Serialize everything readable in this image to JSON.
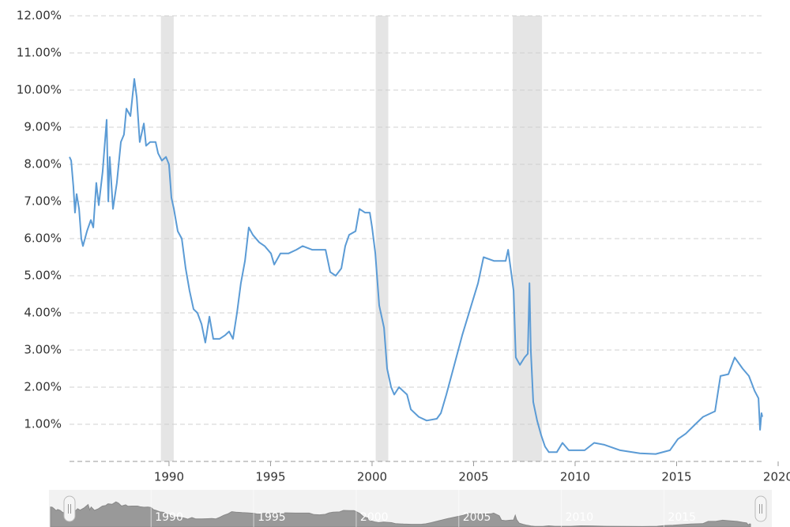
{
  "chart_data": {
    "type": "line",
    "x": [
      1985.1,
      1985.18,
      1985.29,
      1985.37,
      1985.45,
      1985.57,
      1985.68,
      1985.76,
      1985.96,
      1986.15,
      1986.27,
      1986.42,
      1986.54,
      1986.73,
      1986.93,
      1987.01,
      1987.08,
      1987.24,
      1987.43,
      1987.63,
      1987.78,
      1987.9,
      1988.1,
      1988.29,
      1988.41,
      1988.56,
      1988.76,
      1988.87,
      1989.07,
      1989.34,
      1989.46,
      1989.65,
      1989.85,
      1990.0,
      1990.12,
      1990.24,
      1990.43,
      1990.63,
      1990.82,
      1991.01,
      1991.21,
      1991.4,
      1991.6,
      1991.79,
      1991.99,
      1992.18,
      1992.49,
      1992.77,
      1992.96,
      1993.15,
      1993.35,
      1993.54,
      1993.74,
      1993.93,
      1994.13,
      1994.44,
      1994.71,
      1995.02,
      1995.18,
      1995.49,
      1995.88,
      1996.27,
      1996.58,
      1997.05,
      1997.43,
      1997.71,
      1997.94,
      1998.21,
      1998.49,
      1998.68,
      1998.87,
      1999.19,
      1999.38,
      1999.65,
      1999.89,
      2000.0,
      2000.16,
      2000.35,
      2000.59,
      2000.74,
      2000.94,
      2001.09,
      2001.33,
      2001.72,
      2001.91,
      2002.3,
      2002.69,
      2003.19,
      2003.39,
      2003.66,
      2004.05,
      2004.44,
      2004.83,
      2005.22,
      2005.49,
      2006.0,
      2006.58,
      2006.7,
      2006.85,
      2006.97,
      2007.08,
      2007.28,
      2007.51,
      2007.67,
      2007.75,
      2007.82,
      2007.94,
      2008.13,
      2008.33,
      2008.52,
      2008.71,
      2009.1,
      2009.38,
      2009.69,
      2010.47,
      2010.94,
      2011.44,
      2012.22,
      2013.19,
      2013.97,
      2014.67,
      2015.06,
      2015.45,
      2015.92,
      2016.3,
      2016.89,
      2017.16,
      2017.55,
      2017.86,
      2018.25,
      2018.56,
      2018.84,
      2019.03,
      2019.11,
      2019.18,
      2019.22
    ],
    "values": [
      8.2,
      8.1,
      7.4,
      6.7,
      7.2,
      6.8,
      6.0,
      5.8,
      6.2,
      6.5,
      6.3,
      7.5,
      6.9,
      7.8,
      9.2,
      7.0,
      8.2,
      6.8,
      7.5,
      8.6,
      8.8,
      9.5,
      9.3,
      10.3,
      9.8,
      8.6,
      9.1,
      8.5,
      8.6,
      8.6,
      8.3,
      8.1,
      8.2,
      8.0,
      7.1,
      6.8,
      6.2,
      6.0,
      5.2,
      4.6,
      4.1,
      4.0,
      3.7,
      3.2,
      3.9,
      3.3,
      3.3,
      3.4,
      3.5,
      3.3,
      4.0,
      4.8,
      5.4,
      6.3,
      6.1,
      5.9,
      5.8,
      5.6,
      5.3,
      5.6,
      5.6,
      5.7,
      5.8,
      5.7,
      5.7,
      5.7,
      5.1,
      5.0,
      5.2,
      5.8,
      6.1,
      6.2,
      6.8,
      6.7,
      6.7,
      6.3,
      5.6,
      4.2,
      3.6,
      2.5,
      2.0,
      1.8,
      2.0,
      1.8,
      1.4,
      1.2,
      1.1,
      1.15,
      1.3,
      1.8,
      2.6,
      3.4,
      4.1,
      4.8,
      5.5,
      5.4,
      5.4,
      5.7,
      5.1,
      4.6,
      2.8,
      2.6,
      2.8,
      2.9,
      4.8,
      3.0,
      1.6,
      1.1,
      0.7,
      0.4,
      0.25,
      0.25,
      0.5,
      0.3,
      0.3,
      0.5,
      0.45,
      0.3,
      0.22,
      0.2,
      0.3,
      0.6,
      0.75,
      1.0,
      1.2,
      1.35,
      2.3,
      2.35,
      2.8,
      2.5,
      2.3,
      1.9,
      1.7,
      0.85,
      1.3,
      1.2
    ],
    "color": "#5b9bd5",
    "xlim": [
      1985.1,
      2020
    ],
    "xticks": [
      1990,
      1995,
      2000,
      2005,
      2010,
      2015,
      2020
    ],
    "ylim": [
      0,
      12
    ],
    "yticks": [
      {
        "value": 1,
        "label": "1.00%"
      },
      {
        "value": 2,
        "label": "2.00%"
      },
      {
        "value": 3,
        "label": "3.00%"
      },
      {
        "value": 4,
        "label": "4.00%"
      },
      {
        "value": 5,
        "label": "5.00%"
      },
      {
        "value": 6,
        "label": "6.00%"
      },
      {
        "value": 7,
        "label": "7.00%"
      },
      {
        "value": 8,
        "label": "8.00%"
      },
      {
        "value": 9,
        "label": "9.00%"
      },
      {
        "value": 10,
        "label": "10.00%"
      },
      {
        "value": 11,
        "label": "11.00%"
      },
      {
        "value": 12,
        "label": "12.00%"
      }
    ],
    "grid": true,
    "shaded_regions": [
      [
        1989.6,
        1990.23
      ],
      [
        2000.18,
        2000.8
      ],
      [
        2006.93,
        2008.37
      ]
    ],
    "shade_color": "#e5e5e5"
  }
}
